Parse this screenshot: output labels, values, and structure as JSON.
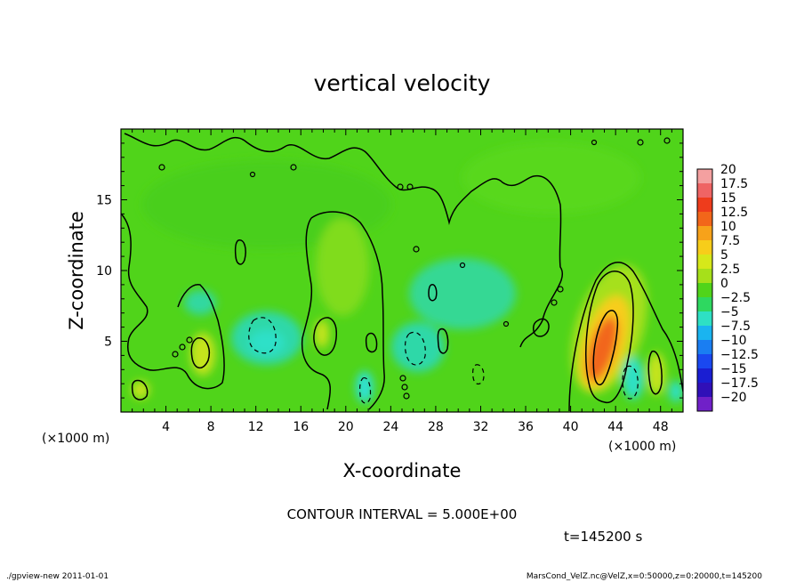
{
  "chart_data": {
    "type": "heatmap",
    "title": "vertical velocity",
    "xlabel": "X-coordinate",
    "ylabel": "Z-coordinate",
    "x_unit": "(×1000 m)",
    "z_unit": "(×1000 m)",
    "xlim": [
      0,
      50
    ],
    "ylim": [
      0,
      20
    ],
    "x_ticks": [
      4,
      8,
      12,
      16,
      20,
      24,
      28,
      32,
      36,
      40,
      44,
      48
    ],
    "z_ticks": [
      5,
      10,
      15
    ],
    "colorbar": {
      "levels": [
        20,
        17.5,
        15,
        12.5,
        10,
        7.5,
        5,
        2.5,
        0,
        -2.5,
        -5,
        -7.5,
        -10,
        -12.5,
        -15,
        -17.5,
        -20
      ],
      "labels": [
        "20",
        "17.5",
        "15",
        "12.5",
        "10",
        "7.5",
        "5",
        "2.5",
        "0",
        "−2.5",
        "−5",
        "−7.5",
        "−10",
        "−12.5",
        "−15",
        "−17.5",
        "−20"
      ],
      "colors": [
        "#f4a0a0",
        "#ef6464",
        "#ee3c1c",
        "#f2661a",
        "#f7a21a",
        "#f7cd1a",
        "#d6e81a",
        "#a6e01a",
        "#50d41a",
        "#2ed860",
        "#2ee0c4",
        "#1ab4f0",
        "#1a7ef2",
        "#1a48f0",
        "#1a1ed2",
        "#3010b8",
        "#7020c8"
      ]
    },
    "contour_interval": "CONTOUR INTERVAL = 5.000E+00",
    "time": "t=145200 s"
  },
  "footer": {
    "left": "./gpview-new  2011-01-01",
    "right": "MarsCond_VelZ.nc@VelZ,x=0:50000,z=0:20000,t=145200"
  }
}
